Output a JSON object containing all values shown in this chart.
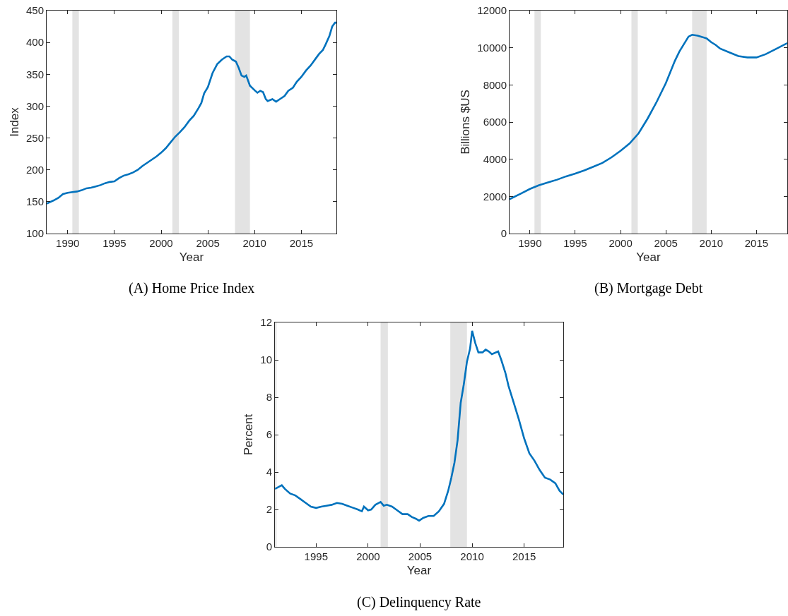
{
  "chart_data": [
    {
      "type": "line",
      "title": "(A) Home Price Index",
      "xlabel": "Year",
      "ylabel": "Index",
      "grid": false,
      "x": [
        1987.75,
        1988.5,
        1989,
        1989.5,
        1990,
        1990.5,
        1991,
        1991.5,
        1992,
        1992.5,
        1993,
        1993.5,
        1994,
        1994.5,
        1995,
        1995.5,
        1996,
        1996.5,
        1997,
        1997.5,
        1998,
        1998.5,
        1999,
        1999.5,
        2000,
        2000.5,
        2001,
        2001.5,
        2002,
        2002.5,
        2003,
        2003.5,
        2004,
        2004.3,
        2004.6,
        2005,
        2005.5,
        2006,
        2006.5,
        2007,
        2007.3,
        2007.6,
        2008,
        2008.3,
        2008.6,
        2008.9,
        2009.1,
        2009.5,
        2010,
        2010.3,
        2010.6,
        2010.9,
        2011.2,
        2011.4,
        2011.9,
        2012.3,
        2012.7,
        2013.2,
        2013.6,
        2014.1,
        2014.5,
        2015,
        2015.5,
        2016,
        2016.5,
        2016.9,
        2017.3,
        2017.6,
        2018,
        2018.3,
        2018.6,
        2018.75
      ],
      "series": [
        {
          "color": "#0072bd",
          "values": [
            147,
            152,
            156,
            162,
            164,
            165,
            166,
            168,
            171,
            172,
            174,
            176,
            179,
            181,
            182,
            187,
            191,
            193,
            196,
            200,
            206,
            211,
            216,
            221,
            227,
            234,
            243,
            252,
            259,
            267,
            277,
            285,
            297,
            305,
            320,
            330,
            352,
            366,
            373,
            378,
            378,
            373,
            370,
            360,
            348,
            346,
            348,
            332,
            325,
            321,
            324,
            322,
            311,
            308,
            311,
            307,
            311,
            316,
            324,
            329,
            338,
            346,
            356,
            364,
            374,
            382,
            388,
            397,
            410,
            425,
            431,
            431
          ]
        }
      ],
      "xlim": [
        1987.75,
        2018.75
      ],
      "xticks": [
        1990,
        1995,
        2000,
        2005,
        2010,
        2015
      ],
      "ylim": [
        100,
        450
      ],
      "yticks": [
        100,
        150,
        200,
        250,
        300,
        350,
        400,
        450
      ],
      "bands": [
        {
          "axis": "x",
          "from": 1990.5,
          "to": 1991.2,
          "color": "#e3e3e3"
        },
        {
          "axis": "x",
          "from": 2001.2,
          "to": 2001.9,
          "color": "#e3e3e3"
        },
        {
          "axis": "x",
          "from": 2007.9,
          "to": 2009.5,
          "color": "#e3e3e3"
        }
      ]
    },
    {
      "type": "line",
      "title": "(B) Mortgage Debt",
      "xlabel": "Year",
      "ylabel": "Billions $US",
      "grid": false,
      "x": [
        1987.75,
        1989,
        1990,
        1991,
        1992,
        1993,
        1994,
        1995,
        1996,
        1997,
        1998,
        1999,
        2000,
        2001,
        2002,
        2003,
        2004,
        2005,
        2006,
        2006.5,
        2007,
        2007.5,
        2007.9,
        2008.5,
        2009,
        2009.5,
        2010,
        2010.5,
        2011,
        2012,
        2013,
        2014,
        2015,
        2016,
        2017,
        2018.4
      ],
      "series": [
        {
          "color": "#0072bd",
          "values": [
            1850,
            2150,
            2400,
            2600,
            2750,
            2900,
            3080,
            3230,
            3400,
            3600,
            3800,
            4100,
            4450,
            4850,
            5400,
            6200,
            7100,
            8100,
            9300,
            9800,
            10200,
            10600,
            10700,
            10650,
            10580,
            10500,
            10300,
            10150,
            9950,
            9750,
            9550,
            9480,
            9480,
            9650,
            9900,
            10250
          ]
        }
      ],
      "xlim": [
        1987.75,
        2018.4
      ],
      "xticks": [
        1990,
        1995,
        2000,
        2005,
        2010,
        2015
      ],
      "ylim": [
        0,
        12000
      ],
      "yticks": [
        0,
        2000,
        4000,
        6000,
        8000,
        10000,
        12000
      ],
      "bands": [
        {
          "axis": "x",
          "from": 1990.5,
          "to": 1991.2,
          "color": "#e3e3e3"
        },
        {
          "axis": "x",
          "from": 2001.2,
          "to": 2001.9,
          "color": "#e3e3e3"
        },
        {
          "axis": "x",
          "from": 2007.9,
          "to": 2009.5,
          "color": "#e3e3e3"
        }
      ]
    },
    {
      "type": "line",
      "title": "(C) Delinquency Rate",
      "xlabel": "Year",
      "ylabel": "Percent",
      "grid": false,
      "x": [
        1991.05,
        1991.7,
        1992,
        1992.5,
        1993,
        1993.5,
        1994,
        1994.5,
        1995,
        1995.5,
        1996,
        1996.5,
        1997,
        1997.5,
        1998,
        1998.5,
        1999,
        1999.4,
        1999.6,
        2000,
        2000.3,
        2000.7,
        2001.2,
        2001.5,
        2001.8,
        2002.3,
        2002.8,
        2003.3,
        2003.8,
        2004.2,
        2004.6,
        2004.9,
        2005.3,
        2005.8,
        2006.3,
        2006.8,
        2007.3,
        2007.7,
        2008,
        2008.3,
        2008.6,
        2008.9,
        2009.2,
        2009.5,
        2009.8,
        2010,
        2010.3,
        2010.6,
        2011,
        2011.3,
        2011.6,
        2011.9,
        2012.5,
        2012.8,
        2013.2,
        2013.5,
        2014,
        2014.5,
        2015,
        2015.5,
        2016,
        2016.5,
        2017,
        2017.5,
        2018,
        2018.4,
        2018.76
      ],
      "series": [
        {
          "color": "#0072bd",
          "values": [
            3.1,
            3.3,
            3.1,
            2.85,
            2.75,
            2.55,
            2.35,
            2.15,
            2.08,
            2.15,
            2.2,
            2.25,
            2.35,
            2.3,
            2.2,
            2.1,
            2.0,
            1.9,
            2.15,
            1.95,
            2.0,
            2.25,
            2.4,
            2.2,
            2.25,
            2.15,
            1.95,
            1.75,
            1.75,
            1.6,
            1.5,
            1.4,
            1.55,
            1.65,
            1.65,
            1.9,
            2.3,
            3.0,
            3.7,
            4.5,
            5.7,
            7.7,
            8.7,
            9.9,
            10.6,
            11.55,
            10.9,
            10.4,
            10.4,
            10.55,
            10.45,
            10.3,
            10.45,
            10.0,
            9.3,
            8.6,
            7.7,
            6.8,
            5.8,
            5.0,
            4.6,
            4.1,
            3.7,
            3.6,
            3.4,
            3.0,
            2.8
          ]
        }
      ],
      "xlim": [
        1991.04,
        2018.76
      ],
      "xticks": [
        1995,
        2000,
        2005,
        2010,
        2015
      ],
      "ylim": [
        0,
        12
      ],
      "yticks": [
        0,
        2,
        4,
        6,
        8,
        10,
        12
      ],
      "bands": [
        {
          "axis": "x",
          "from": 1990.5,
          "to": 1991.2,
          "color": "#e3e3e3"
        },
        {
          "axis": "x",
          "from": 2001.2,
          "to": 2001.9,
          "color": "#e3e3e3"
        },
        {
          "axis": "x",
          "from": 2007.9,
          "to": 2009.5,
          "color": "#e3e3e3"
        }
      ]
    }
  ]
}
